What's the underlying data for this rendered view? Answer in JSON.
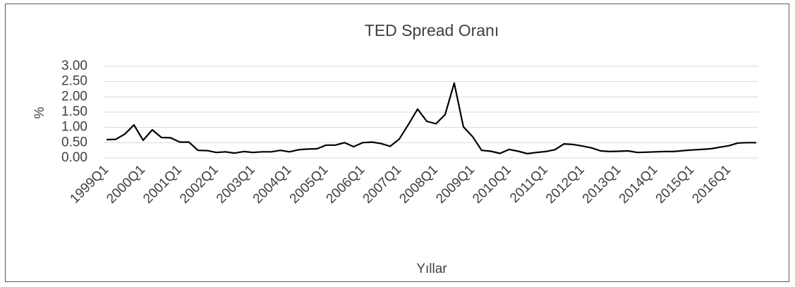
{
  "chart_data": {
    "type": "line",
    "title": "TED Spread Oranı",
    "xlabel": "Yıllar",
    "ylabel": "%",
    "categories": [
      "1999Q1",
      null,
      null,
      null,
      "2000Q1",
      null,
      null,
      null,
      "2001Q1",
      null,
      null,
      null,
      "2002Q1",
      null,
      null,
      null,
      "2003Q1",
      null,
      null,
      null,
      "2004Q1",
      null,
      null,
      null,
      "2005Q1",
      null,
      null,
      null,
      "2006Q1",
      null,
      null,
      null,
      "2007Q1",
      null,
      null,
      null,
      "2008Q1",
      null,
      null,
      null,
      "2009Q1",
      null,
      null,
      null,
      "2010Q1",
      null,
      null,
      null,
      "2011Q1",
      null,
      null,
      null,
      "2012Q1",
      null,
      null,
      null,
      "2013Q1",
      null,
      null,
      null,
      "2014Q1",
      null,
      null,
      null,
      "2015Q1",
      null,
      null,
      null,
      "2016Q1",
      null,
      null,
      null
    ],
    "values": [
      0.6,
      0.61,
      0.78,
      1.08,
      0.58,
      0.92,
      0.67,
      0.66,
      0.52,
      0.52,
      0.25,
      0.24,
      0.18,
      0.2,
      0.16,
      0.21,
      0.18,
      0.2,
      0.2,
      0.25,
      0.2,
      0.27,
      0.29,
      0.3,
      0.42,
      0.42,
      0.5,
      0.37,
      0.5,
      0.52,
      0.47,
      0.38,
      0.62,
      1.1,
      1.6,
      1.2,
      1.12,
      1.42,
      2.45,
      1.02,
      0.7,
      0.25,
      0.22,
      0.15,
      0.28,
      0.22,
      0.14,
      0.18,
      0.21,
      0.27,
      0.46,
      0.44,
      0.39,
      0.33,
      0.23,
      0.21,
      0.22,
      0.23,
      0.18,
      0.19,
      0.2,
      0.21,
      0.21,
      0.24,
      0.26,
      0.28,
      0.3,
      0.35,
      0.4,
      0.49,
      0.5,
      0.5
    ],
    "color": "#000000",
    "ylim": [
      0,
      3
    ],
    "yticks": [
      {
        "value": 0,
        "label": "0.00"
      },
      {
        "value": 0.5,
        "label": "0.50"
      },
      {
        "value": 1,
        "label": "1.00"
      },
      {
        "value": 1.5,
        "label": "1.50"
      },
      {
        "value": 2,
        "label": "2.00"
      },
      {
        "value": 2.5,
        "label": "2.50"
      },
      {
        "value": 3,
        "label": "3.00"
      }
    ],
    "grid": true
  }
}
